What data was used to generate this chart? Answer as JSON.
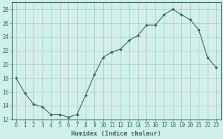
{
  "x": [
    0,
    1,
    2,
    3,
    4,
    5,
    6,
    7,
    8,
    9,
    10,
    11,
    12,
    13,
    14,
    15,
    16,
    17,
    18,
    19,
    20,
    21,
    22,
    23
  ],
  "y": [
    18,
    15.8,
    14.2,
    13.8,
    12.7,
    12.7,
    12.3,
    12.7,
    15.5,
    18.5,
    21.0,
    21.8,
    22.2,
    23.5,
    24.2,
    25.7,
    25.7,
    27.2,
    28.0,
    27.2,
    26.5,
    25.0,
    21.0,
    19.5
  ],
  "line_color": "#2e6b5e",
  "marker": "D",
  "markersize": 2.0,
  "bg_color": "#cff0eb",
  "grid_color": "#c0b8b8",
  "xlabel": "Humidex (Indice chaleur)",
  "xlim": [
    -0.5,
    23.5
  ],
  "ylim": [
    12,
    29
  ],
  "yticks": [
    12,
    14,
    16,
    18,
    20,
    22,
    24,
    26,
    28
  ],
  "xticks": [
    0,
    1,
    2,
    3,
    4,
    5,
    6,
    7,
    8,
    9,
    10,
    11,
    12,
    13,
    14,
    15,
    16,
    17,
    18,
    19,
    20,
    21,
    22,
    23
  ],
  "tick_color": "#2e6b5e",
  "label_color": "#2e6b5e",
  "xlabel_fontsize": 6.5,
  "tick_fontsize": 5.5
}
